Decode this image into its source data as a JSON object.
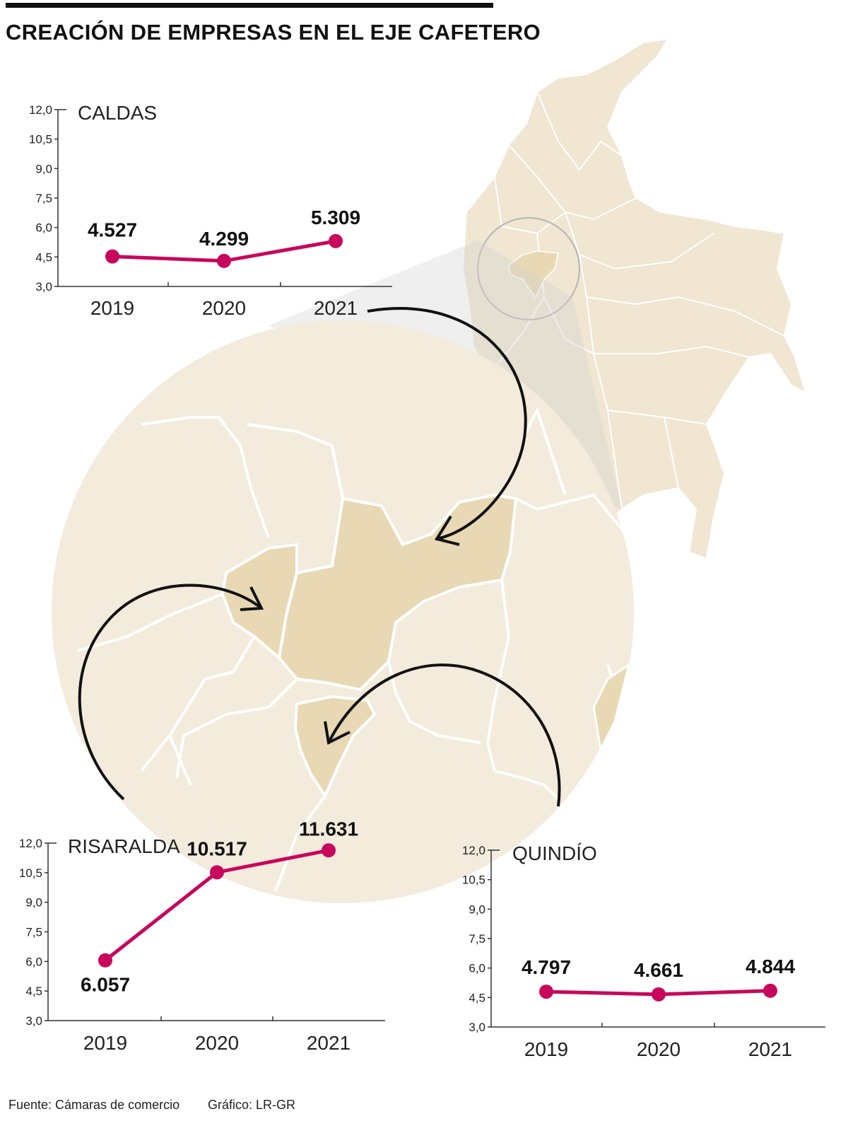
{
  "header": {
    "title": "CREACIÓN DE EMPRESAS EN EL EJE CAFETERO"
  },
  "footer": {
    "source": "Fuente: Cámaras de comercio",
    "credit": "Gráfico: LR-GR"
  },
  "colors": {
    "line": "#c8065c",
    "map_fill": "#f0e6d2",
    "map_light": "#f3ebdc",
    "highlight": "#e8d8b4",
    "border": "#ffffff"
  },
  "chart_data": [
    {
      "type": "line",
      "title": "CALDAS",
      "categories": [
        "2019",
        "2020",
        "2021"
      ],
      "values": [
        4.527,
        4.299,
        5.309
      ],
      "value_labels": [
        "4.527",
        "4.299",
        "5.309"
      ],
      "yticks": [
        "3,0",
        "4,5",
        "6,0",
        "7,5",
        "9,0",
        "10,5",
        "12,0"
      ],
      "ylim": [
        3.0,
        12.0
      ]
    },
    {
      "type": "line",
      "title": "RISARALDA",
      "categories": [
        "2019",
        "2020",
        "2021"
      ],
      "values": [
        6.057,
        10.517,
        11.631
      ],
      "value_labels": [
        "6.057",
        "10.517",
        "11.631"
      ],
      "yticks": [
        "3,0",
        "4,5",
        "6,0",
        "7,5",
        "9,0",
        "10,5",
        "12,0"
      ],
      "ylim": [
        3.0,
        12.0
      ]
    },
    {
      "type": "line",
      "title": "QUINDÍO",
      "categories": [
        "2019",
        "2020",
        "2021"
      ],
      "values": [
        4.797,
        4.661,
        4.844
      ],
      "value_labels": [
        "4.797",
        "4.661",
        "4.844"
      ],
      "yticks": [
        "3,0",
        "4,5",
        "6,0",
        "7,5",
        "9,0",
        "10,5",
        "12,0"
      ],
      "ylim": [
        3.0,
        12.0
      ]
    }
  ]
}
